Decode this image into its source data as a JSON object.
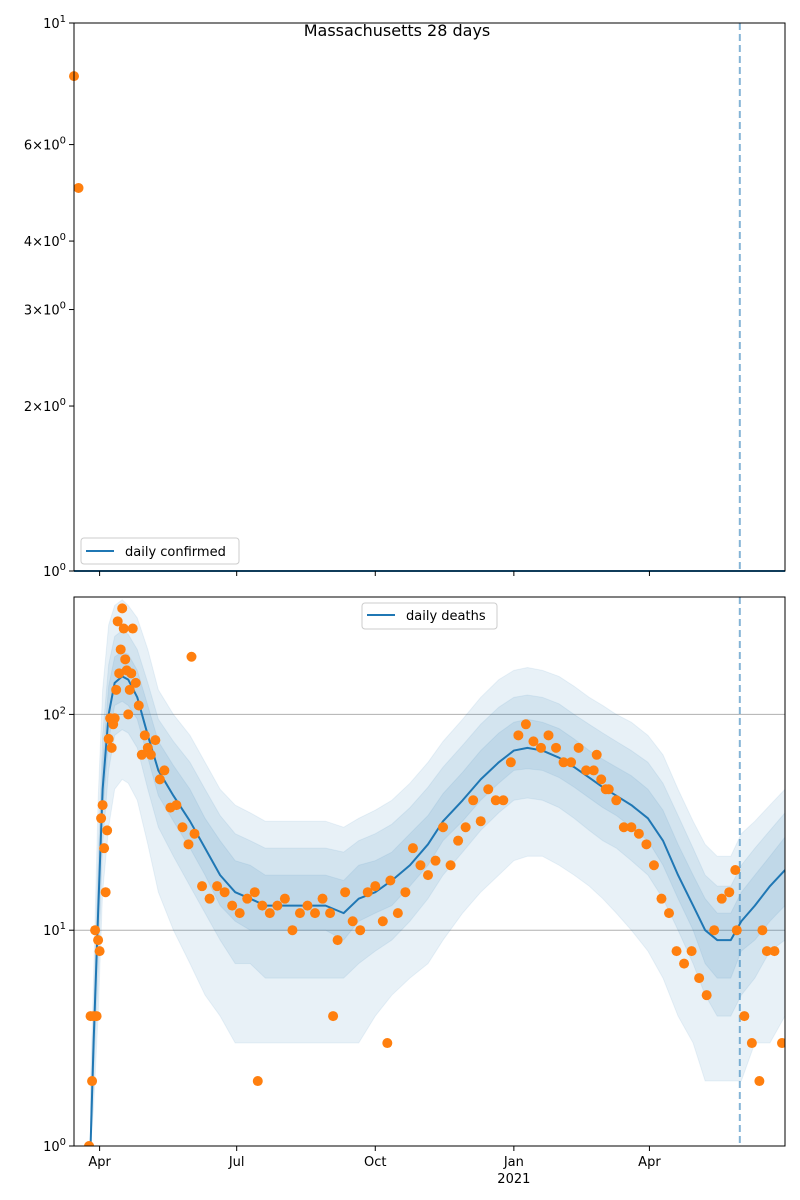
{
  "colors": {
    "line": "#1f77b4",
    "points": "#ff7f0e",
    "band": "#1f77b4",
    "vline": "#1f77b4",
    "grid": "#b0b0b0"
  },
  "chart_data": [
    {
      "type": "line",
      "title": "Massachusetts 28 days",
      "yscale": "log",
      "ylim": [
        1,
        10
      ],
      "y_ticks": [
        {
          "value": 1,
          "label": "10^0"
        },
        {
          "value": 2,
          "label": "2×10^0"
        },
        {
          "value": 3,
          "label": "3×10^0"
        },
        {
          "value": 4,
          "label": "4×10^0"
        },
        {
          "value": 6,
          "label": "6×10^0"
        },
        {
          "value": 10,
          "label": "10^1"
        }
      ],
      "xlim": [
        "2020-03-15",
        "2021-06-30"
      ],
      "vline": "2021-05-31",
      "grid": false,
      "legend": {
        "position": "lower-left",
        "entries": [
          "daily confirmed"
        ]
      },
      "series": [
        {
          "name": "daily confirmed",
          "kind": "line",
          "x": [
            "2020-03-15",
            "2021-06-30"
          ],
          "y": [
            1,
            1
          ]
        }
      ],
      "points": {
        "x": [
          "2020-03-15",
          "2020-03-18"
        ],
        "y": [
          8,
          5
        ]
      }
    },
    {
      "type": "line",
      "yscale": "log",
      "ylim": [
        1,
        350
      ],
      "y_ticks": [
        {
          "value": 1,
          "label": "10^0"
        },
        {
          "value": 10,
          "label": "10^1"
        },
        {
          "value": 100,
          "label": "10^2"
        }
      ],
      "x_ticks": [
        {
          "date": "2020-04-01",
          "label": "Apr",
          "sub": ""
        },
        {
          "date": "2020-07-01",
          "label": "Jul",
          "sub": ""
        },
        {
          "date": "2020-10-01",
          "label": "Oct",
          "sub": ""
        },
        {
          "date": "2021-01-01",
          "label": "Jan",
          "sub": "2021"
        },
        {
          "date": "2021-04-01",
          "label": "Apr",
          "sub": ""
        }
      ],
      "xlim": [
        "2020-03-15",
        "2021-06-30"
      ],
      "vline": "2021-05-31",
      "grid": true,
      "legend": {
        "position": "top-center",
        "entries": [
          "daily deaths"
        ]
      },
      "series": [
        {
          "name": "daily deaths",
          "kind": "line",
          "x": [
            "2020-03-26",
            "2020-03-28",
            "2020-03-31",
            "2020-04-03",
            "2020-04-07",
            "2020-04-11",
            "2020-04-16",
            "2020-04-20",
            "2020-04-26",
            "2020-05-03",
            "2020-05-10",
            "2020-05-20",
            "2020-05-31",
            "2020-06-10",
            "2020-06-20",
            "2020-06-30",
            "2020-07-10",
            "2020-07-20",
            "2020-08-01",
            "2020-08-15",
            "2020-08-29",
            "2020-09-10",
            "2020-09-20",
            "2020-10-01",
            "2020-10-12",
            "2020-10-24",
            "2020-11-05",
            "2020-11-15",
            "2020-11-28",
            "2020-12-10",
            "2020-12-22",
            "2021-01-01",
            "2021-01-10",
            "2021-01-20",
            "2021-01-31",
            "2021-02-10",
            "2021-02-20",
            "2021-03-01",
            "2021-03-10",
            "2021-03-20",
            "2021-03-31",
            "2021-04-10",
            "2021-04-20",
            "2021-04-30",
            "2021-05-08",
            "2021-05-16",
            "2021-05-25",
            "2021-06-01",
            "2021-06-10",
            "2021-06-20",
            "2021-06-30"
          ],
          "y": [
            1,
            3,
            12,
            45,
            100,
            140,
            150,
            145,
            120,
            80,
            55,
            42,
            32,
            24,
            18,
            15,
            14,
            13,
            13,
            13,
            13,
            12,
            14,
            15,
            17,
            20,
            25,
            32,
            40,
            50,
            60,
            68,
            70,
            68,
            63,
            57,
            51,
            46,
            42,
            38,
            33,
            26,
            18,
            13,
            10,
            9,
            9,
            11,
            13,
            16,
            19
          ]
        }
      ],
      "bands": [
        {
          "lo": [
            1,
            1.5,
            4,
            15,
            30,
            45,
            50,
            48,
            40,
            25,
            15,
            10,
            7,
            5,
            4,
            3,
            3,
            3,
            3,
            3,
            3,
            3,
            3,
            4,
            5,
            6,
            7,
            9,
            12,
            15,
            18,
            21,
            22,
            22,
            20,
            18,
            16,
            14,
            12,
            10,
            8,
            6,
            4,
            3,
            2,
            2,
            2,
            2,
            3,
            3,
            4
          ],
          "hi": [
            2,
            6,
            40,
            130,
            260,
            320,
            340,
            320,
            280,
            200,
            130,
            100,
            80,
            60,
            45,
            38,
            35,
            32,
            32,
            32,
            32,
            30,
            33,
            36,
            40,
            48,
            60,
            75,
            95,
            120,
            145,
            160,
            165,
            160,
            150,
            135,
            120,
            110,
            100,
            92,
            80,
            65,
            45,
            32,
            25,
            22,
            22,
            28,
            32,
            38,
            45
          ]
        },
        {
          "lo": [
            1,
            2,
            6,
            25,
            55,
            80,
            85,
            82,
            70,
            45,
            30,
            22,
            16,
            12,
            9,
            7,
            7,
            6,
            6,
            6,
            6,
            6,
            7,
            8,
            9,
            11,
            14,
            18,
            23,
            29,
            35,
            40,
            41,
            40,
            37,
            33,
            29,
            26,
            24,
            21,
            18,
            14,
            10,
            7,
            5,
            4,
            4,
            5,
            6,
            8,
            9
          ],
          "hi": [
            1.5,
            4,
            22,
            80,
            170,
            230,
            245,
            235,
            200,
            140,
            95,
            75,
            60,
            45,
            34,
            28,
            26,
            24,
            24,
            24,
            24,
            23,
            26,
            28,
            31,
            37,
            46,
            57,
            72,
            90,
            108,
            120,
            123,
            120,
            112,
            100,
            90,
            82,
            75,
            68,
            60,
            48,
            34,
            24,
            18,
            16,
            16,
            20,
            24,
            29,
            35
          ]
        },
        {
          "lo": [
            1,
            2.5,
            9,
            35,
            75,
            110,
            115,
            110,
            95,
            63,
            42,
            32,
            24,
            18,
            13,
            11,
            10,
            10,
            10,
            10,
            10,
            9,
            11,
            12,
            13,
            16,
            20,
            26,
            32,
            40,
            48,
            55,
            56,
            55,
            51,
            46,
            41,
            37,
            34,
            30,
            26,
            20,
            14,
            10,
            7,
            6,
            6,
            8,
            9,
            11,
            13
          ],
          "hi": [
            1.2,
            3.5,
            16,
            60,
            135,
            185,
            195,
            190,
            160,
            110,
            75,
            58,
            45,
            33,
            26,
            21,
            20,
            18,
            18,
            18,
            18,
            17,
            20,
            21,
            23,
            28,
            34,
            43,
            54,
            68,
            82,
            92,
            95,
            92,
            86,
            77,
            68,
            62,
            57,
            52,
            45,
            36,
            25,
            18,
            14,
            12,
            12,
            15,
            18,
            22,
            27
          ]
        }
      ],
      "points": {
        "x": [
          "2020-03-25",
          "2020-03-26",
          "2020-03-27",
          "2020-03-28",
          "2020-03-29",
          "2020-03-30",
          "2020-03-31",
          "2020-04-01",
          "2020-04-02",
          "2020-04-03",
          "2020-04-04",
          "2020-04-05",
          "2020-04-06",
          "2020-04-07",
          "2020-04-08",
          "2020-04-09",
          "2020-04-10",
          "2020-04-11",
          "2020-04-12",
          "2020-04-13",
          "2020-04-14",
          "2020-04-15",
          "2020-04-16",
          "2020-04-17",
          "2020-04-18",
          "2020-04-19",
          "2020-04-20",
          "2020-04-21",
          "2020-04-22",
          "2020-04-23",
          "2020-04-25",
          "2020-04-27",
          "2020-04-29",
          "2020-05-01",
          "2020-05-03",
          "2020-05-05",
          "2020-05-08",
          "2020-05-11",
          "2020-05-14",
          "2020-05-18",
          "2020-05-22",
          "2020-05-26",
          "2020-05-30",
          "2020-06-03",
          "2020-06-08",
          "2020-06-13",
          "2020-06-18",
          "2020-06-23",
          "2020-06-28",
          "2020-07-03",
          "2020-07-08",
          "2020-07-13",
          "2020-07-18",
          "2020-07-23",
          "2020-07-28",
          "2020-08-02",
          "2020-08-07",
          "2020-08-12",
          "2020-08-17",
          "2020-08-22",
          "2020-08-27",
          "2020-09-01",
          "2020-09-06",
          "2020-09-11",
          "2020-09-16",
          "2020-09-21",
          "2020-09-26",
          "2020-10-01",
          "2020-10-06",
          "2020-10-11",
          "2020-10-16",
          "2020-10-21",
          "2020-10-26",
          "2020-10-31",
          "2020-11-05",
          "2020-11-10",
          "2020-11-15",
          "2020-11-20",
          "2020-11-25",
          "2020-11-30",
          "2020-12-05",
          "2020-12-10",
          "2020-12-15",
          "2020-12-20",
          "2020-12-25",
          "2020-12-30",
          "2021-01-04",
          "2021-01-09",
          "2021-01-14",
          "2021-01-19",
          "2021-01-24",
          "2021-01-29",
          "2021-02-03",
          "2021-02-08",
          "2021-02-13",
          "2021-02-18",
          "2021-02-23",
          "2021-02-28",
          "2021-03-05",
          "2021-03-10",
          "2021-03-15",
          "2021-03-20",
          "2021-03-25",
          "2021-03-30",
          "2021-04-04",
          "2021-04-09",
          "2021-04-14",
          "2021-04-19",
          "2021-04-24",
          "2021-04-29",
          "2021-05-04",
          "2021-05-09",
          "2021-05-14",
          "2021-05-19",
          "2021-05-24",
          "2021-05-29",
          "2021-06-03",
          "2021-06-08",
          "2021-06-13",
          "2021-06-18",
          "2021-06-23",
          "2021-06-28",
          "2020-06-01",
          "2020-07-15",
          "2020-09-03",
          "2020-10-09",
          "2021-02-25",
          "2021-03-03",
          "2021-05-28",
          "2021-06-15"
        ],
        "y": [
          1,
          4,
          2,
          4,
          10,
          4,
          9,
          8,
          33,
          38,
          24,
          15,
          29,
          77,
          96,
          70,
          90,
          96,
          130,
          270,
          155,
          200,
          310,
          250,
          180,
          160,
          100,
          130,
          155,
          250,
          140,
          110,
          65,
          80,
          70,
          65,
          76,
          50,
          55,
          37,
          38,
          30,
          25,
          28,
          16,
          14,
          16,
          15,
          13,
          12,
          14,
          15,
          13,
          12,
          13,
          14,
          10,
          12,
          13,
          12,
          14,
          12,
          9,
          15,
          11,
          10,
          15,
          16,
          11,
          17,
          12,
          15,
          24,
          20,
          18,
          21,
          30,
          20,
          26,
          30,
          40,
          32,
          45,
          40,
          40,
          60,
          80,
          90,
          75,
          70,
          80,
          70,
          60,
          60,
          70,
          55,
          55,
          50,
          45,
          40,
          30,
          30,
          28,
          25,
          20,
          14,
          12,
          8,
          7,
          8,
          6,
          5,
          10,
          14,
          15,
          10,
          4,
          3,
          2,
          8,
          8,
          3,
          185,
          2,
          4,
          3,
          65,
          45,
          19,
          10
        ]
      }
    }
  ]
}
